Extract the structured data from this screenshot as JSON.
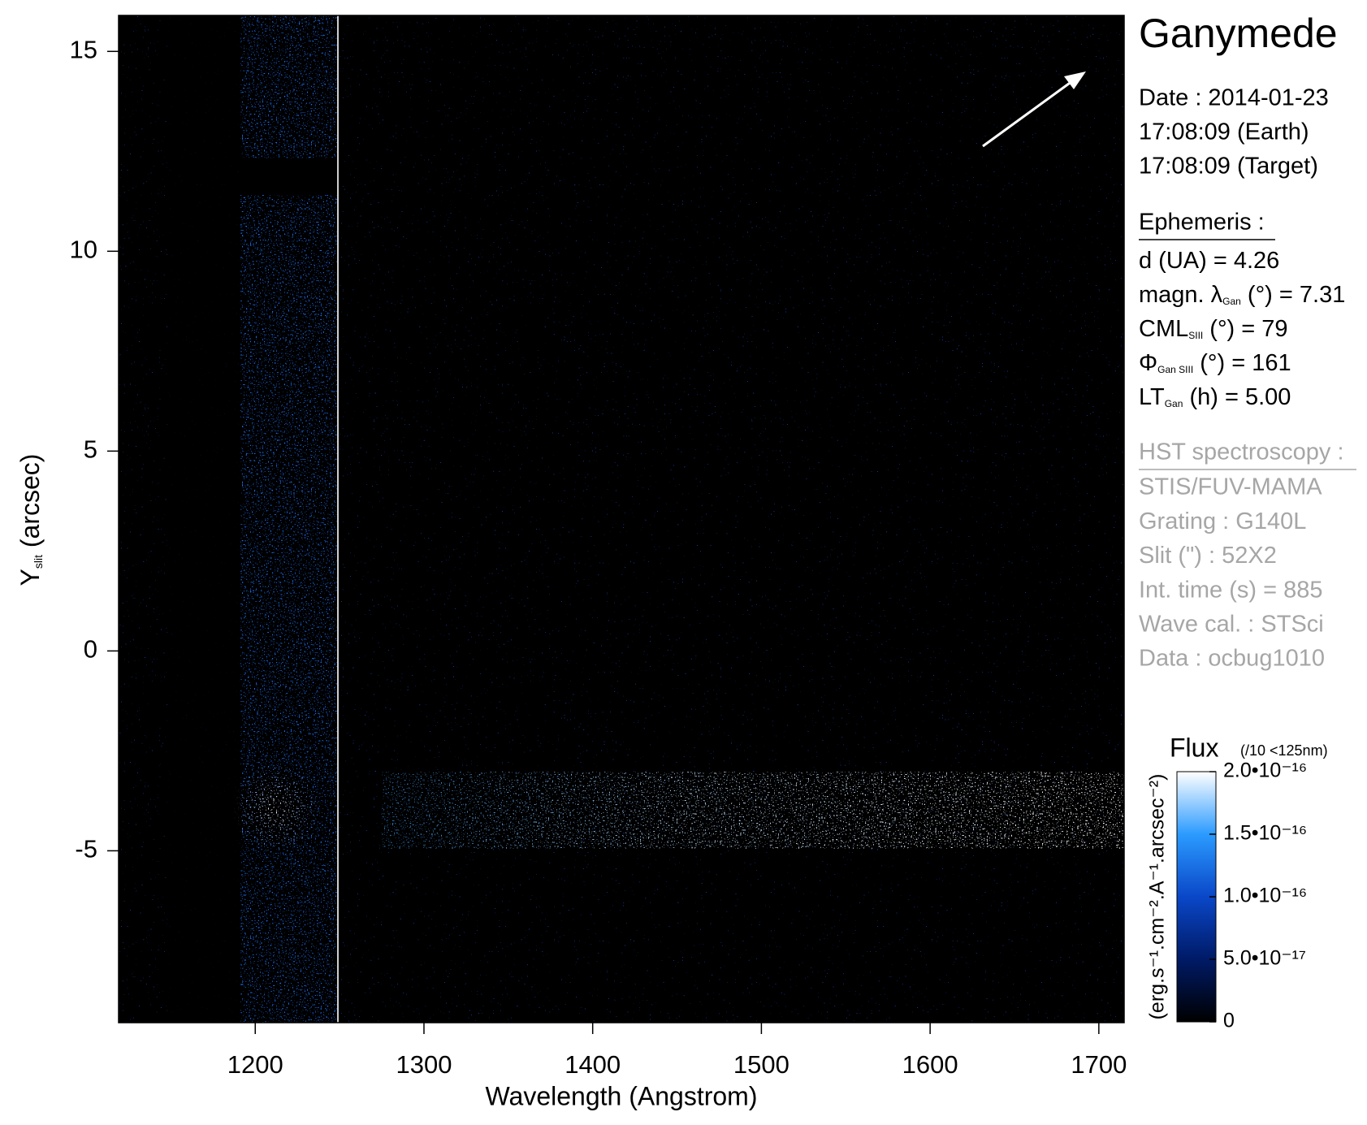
{
  "chart_data": {
    "type": "heatmap",
    "title": "Ganymede",
    "xlabel": "Wavelength (Angstrom)",
    "ylabel": {
      "main": "Y",
      "sub": "slit",
      "rest": " (arcsec)"
    },
    "xlim": [
      1119,
      1715
    ],
    "ylim": [
      -9.3,
      15.9
    ],
    "xticks": [
      1200,
      1300,
      1400,
      1500,
      1600,
      1700
    ],
    "yticks": [
      -5,
      0,
      5,
      10,
      15
    ],
    "colorbar": {
      "title": "Flux",
      "note": "(/10 <125nm)",
      "label": "(erg.s⁻¹.cm⁻².A⁻¹.arcsec⁻²)",
      "lim": [
        0,
        2e-16
      ],
      "ticks": [
        0,
        {
          "value": 5e-17,
          "label": "5.0•10⁻¹⁷"
        },
        {
          "value": 1e-16,
          "label": "1.0•10⁻¹⁶"
        },
        {
          "value": 1.5e-16,
          "label": "1.5•10⁻¹⁶"
        },
        {
          "value": 2e-16,
          "label": "2.0•10⁻¹⁶"
        }
      ],
      "colors": [
        "#000000",
        "#001a66",
        "#0a47c8",
        "#2b9bff",
        "#ffffff"
      ]
    },
    "info": {
      "date": [
        "Date : 2014-01-23",
        "17:08:09 (Earth)",
        "17:08:09 (Target)"
      ],
      "ephemeris_heading": "Ephemeris :",
      "ephemeris": [
        {
          "main": "d (UA)     = 4.26"
        },
        {
          "main": "magn. λ",
          "sub": "Gan",
          "rest": " (°)  = 7.31"
        },
        {
          "main": "CML",
          "sub": "SIII",
          "rest": " (°) = 79"
        },
        {
          "main": "Φ",
          "sub": "Gan SIII",
          "rest": " (°) = 161"
        },
        {
          "main": "LT",
          "sub": "Gan",
          "rest": " (h) = 5.00"
        }
      ],
      "hst_heading": "HST spectroscopy :",
      "hst": [
        "STIS/FUV-MAMA",
        "Grating : G140L",
        "Slit (\") : 52X2",
        "Int. time (s) = 885",
        "Wave cal. : STSci",
        "Data : ocbug1010"
      ]
    }
  }
}
